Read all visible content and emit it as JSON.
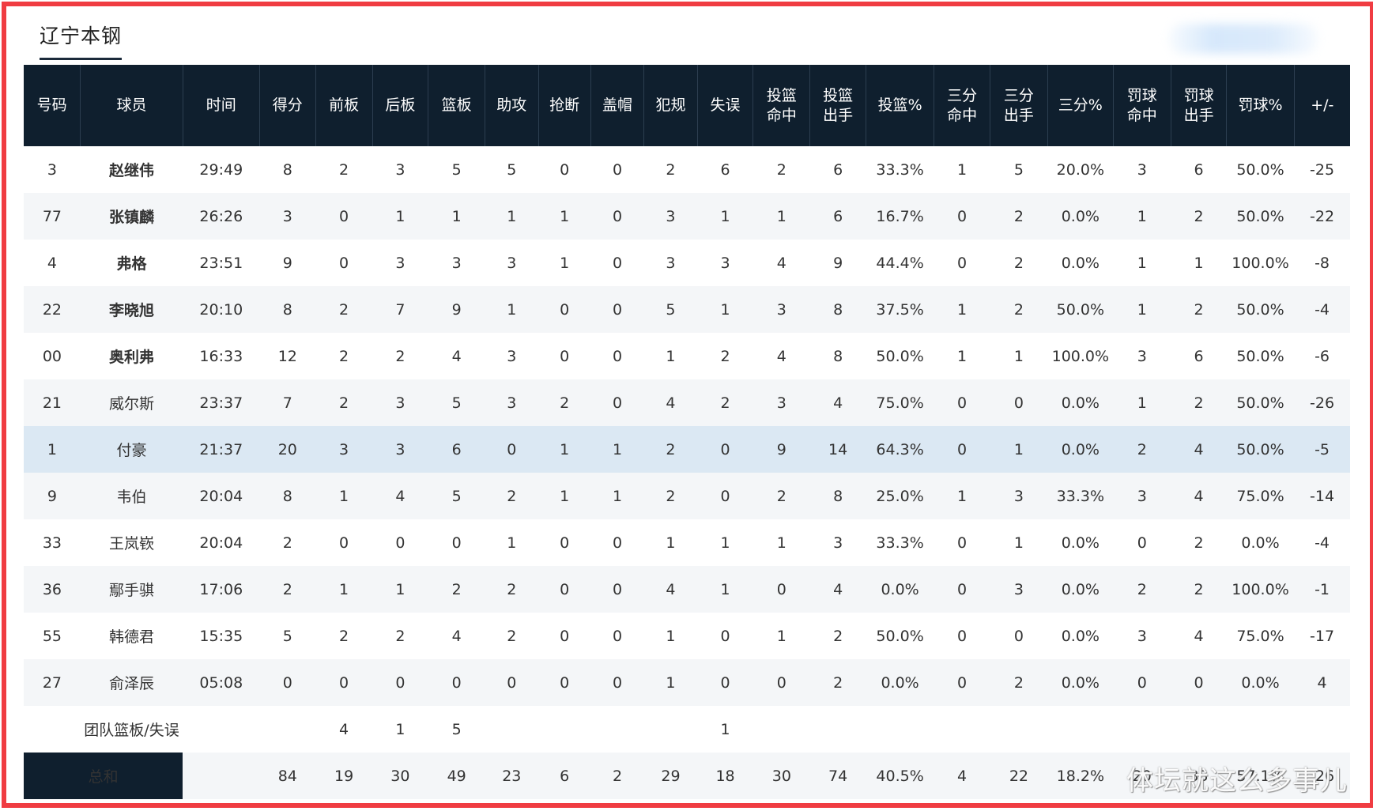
{
  "team_name": "辽宁本钢",
  "columns": [
    "号码",
    "球员",
    "时间",
    "得分",
    "前板",
    "后板",
    "篮板",
    "助攻",
    "抢断",
    "盖帽",
    "犯规",
    "失误",
    "投篮\n命中",
    "投篮\n出手",
    "投篮%",
    "三分\n命中",
    "三分\n出手",
    "三分%",
    "罚球\n命中",
    "罚球\n出手",
    "罚球%",
    "+/-"
  ],
  "players": [
    {
      "no": "3",
      "name": "赵继伟",
      "starter": true,
      "stats": [
        "29:49",
        "8",
        "2",
        "3",
        "5",
        "5",
        "0",
        "0",
        "2",
        "6",
        "2",
        "6",
        "33.3%",
        "1",
        "5",
        "20.0%",
        "3",
        "6",
        "50.0%",
        "-25"
      ]
    },
    {
      "no": "77",
      "name": "张镇麟",
      "starter": true,
      "stats": [
        "26:26",
        "3",
        "0",
        "1",
        "1",
        "1",
        "1",
        "0",
        "3",
        "1",
        "1",
        "6",
        "16.7%",
        "0",
        "2",
        "0.0%",
        "1",
        "2",
        "50.0%",
        "-22"
      ]
    },
    {
      "no": "4",
      "name": "弗格",
      "starter": true,
      "stats": [
        "23:51",
        "9",
        "0",
        "3",
        "3",
        "3",
        "1",
        "0",
        "3",
        "3",
        "4",
        "9",
        "44.4%",
        "0",
        "2",
        "0.0%",
        "1",
        "1",
        "100.0%",
        "-8"
      ]
    },
    {
      "no": "22",
      "name": "李晓旭",
      "starter": true,
      "stats": [
        "20:10",
        "8",
        "2",
        "7",
        "9",
        "1",
        "0",
        "0",
        "5",
        "1",
        "3",
        "8",
        "37.5%",
        "1",
        "2",
        "50.0%",
        "1",
        "2",
        "50.0%",
        "-4"
      ]
    },
    {
      "no": "00",
      "name": "奥利弗",
      "starter": true,
      "stats": [
        "16:33",
        "12",
        "2",
        "2",
        "4",
        "3",
        "0",
        "0",
        "1",
        "2",
        "4",
        "8",
        "50.0%",
        "1",
        "1",
        "100.0%",
        "3",
        "6",
        "50.0%",
        "-6"
      ]
    },
    {
      "no": "21",
      "name": "威尔斯",
      "starter": false,
      "stats": [
        "23:37",
        "7",
        "2",
        "3",
        "5",
        "3",
        "2",
        "0",
        "4",
        "2",
        "3",
        "4",
        "75.0%",
        "0",
        "0",
        "0.0%",
        "1",
        "2",
        "50.0%",
        "-26"
      ]
    },
    {
      "no": "1",
      "name": "付豪",
      "starter": false,
      "highlight": true,
      "stats": [
        "21:37",
        "20",
        "3",
        "3",
        "6",
        "0",
        "1",
        "1",
        "2",
        "0",
        "9",
        "14",
        "64.3%",
        "0",
        "1",
        "0.0%",
        "2",
        "4",
        "50.0%",
        "-5"
      ]
    },
    {
      "no": "9",
      "name": "韦伯",
      "starter": false,
      "stats": [
        "20:04",
        "8",
        "1",
        "4",
        "5",
        "2",
        "1",
        "1",
        "2",
        "0",
        "2",
        "8",
        "25.0%",
        "1",
        "3",
        "33.3%",
        "3",
        "4",
        "75.0%",
        "-14"
      ]
    },
    {
      "no": "33",
      "name": "王岚嵚",
      "starter": false,
      "stats": [
        "20:04",
        "2",
        "0",
        "0",
        "0",
        "1",
        "0",
        "0",
        "1",
        "1",
        "1",
        "3",
        "33.3%",
        "0",
        "1",
        "0.0%",
        "0",
        "2",
        "0.0%",
        "-4"
      ]
    },
    {
      "no": "36",
      "name": "鄢手骐",
      "starter": false,
      "stats": [
        "17:06",
        "2",
        "1",
        "1",
        "2",
        "2",
        "0",
        "0",
        "4",
        "1",
        "0",
        "4",
        "0.0%",
        "0",
        "3",
        "0.0%",
        "2",
        "2",
        "100.0%",
        "-1"
      ]
    },
    {
      "no": "55",
      "name": "韩德君",
      "starter": false,
      "stats": [
        "15:35",
        "5",
        "2",
        "2",
        "4",
        "2",
        "0",
        "0",
        "1",
        "0",
        "1",
        "2",
        "50.0%",
        "0",
        "0",
        "0.0%",
        "3",
        "4",
        "75.0%",
        "-17"
      ]
    },
    {
      "no": "27",
      "name": "俞泽辰",
      "starter": false,
      "stats": [
        "05:08",
        "0",
        "0",
        "0",
        "0",
        "0",
        "0",
        "0",
        "1",
        "0",
        "0",
        "2",
        "0.0%",
        "0",
        "2",
        "0.0%",
        "0",
        "0",
        "0.0%",
        "4"
      ]
    }
  ],
  "team_row": {
    "label": "团队篮板/失误",
    "stats": [
      "",
      "",
      "4",
      "1",
      "5",
      "",
      "",
      "",
      "",
      "1",
      "",
      "",
      "",
      "",
      "",
      "",
      "",
      "",
      "",
      ""
    ]
  },
  "total_row": {
    "label": "总和",
    "stats": [
      "",
      "84",
      "19",
      "30",
      "49",
      "23",
      "6",
      "2",
      "29",
      "18",
      "30",
      "74",
      "40.5%",
      "4",
      "22",
      "18.2%",
      "20",
      "35",
      "57.1%",
      "-26"
    ]
  },
  "watermark": "体坛就这么多事儿"
}
